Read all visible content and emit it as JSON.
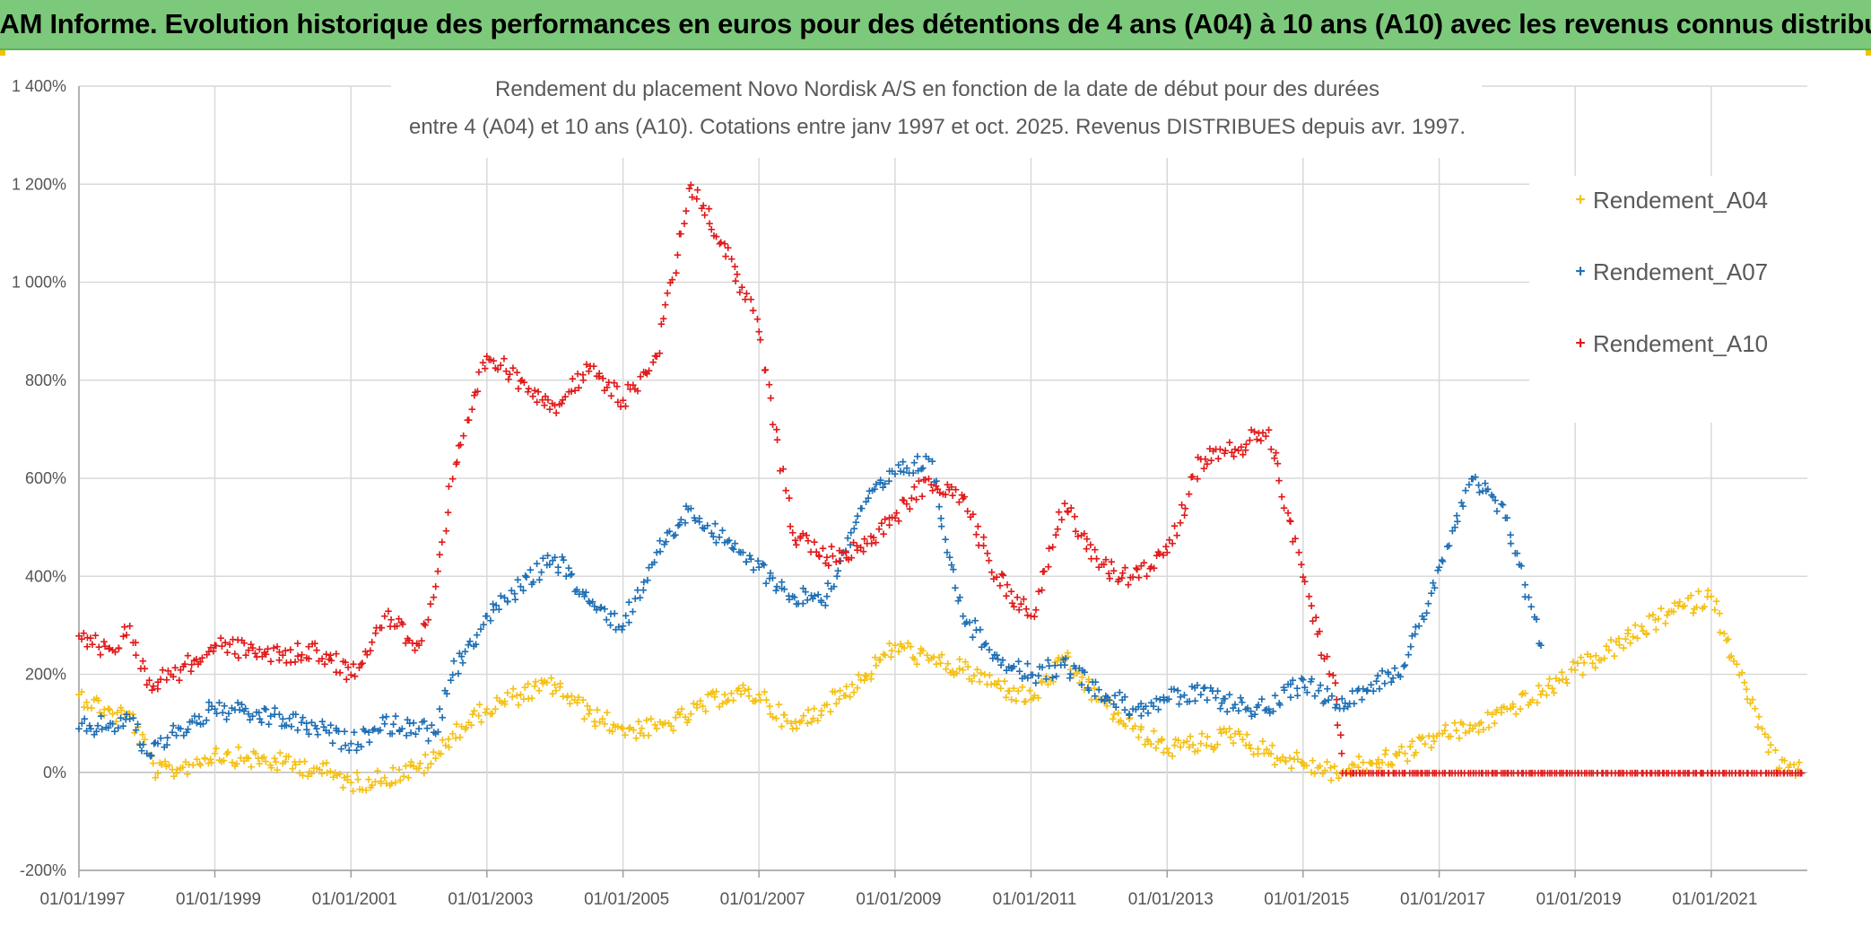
{
  "banner": {
    "text": "ADAM Informe. Evolution historique des performances en euros pour des détentions de 4 ans (A04) à 10 ans (A10) avec les revenus connus distribués"
  },
  "chart_data": {
    "type": "scatter",
    "title": "Rendement du placement Novo Nordisk A/S en fonction de la date de début pour des durées",
    "subtitle": "entre 4 (A04) et 10 ans (A10). Cotations entre janv 1997 et oct. 2025. Revenus DISTRIBUES depuis avr. 1997.",
    "xlabel": "",
    "ylabel": "",
    "xlim": [
      "1997-01-01",
      "2022-06-01"
    ],
    "ylim": [
      -200,
      1400
    ],
    "x_ticks": [
      "01/01/1997",
      "01/01/1999",
      "01/01/2001",
      "01/01/2003",
      "01/01/2005",
      "01/01/2007",
      "01/01/2009",
      "01/01/2011",
      "01/01/2013",
      "01/01/2015",
      "01/01/2017",
      "01/01/2019",
      "01/01/2021"
    ],
    "y_ticks": [
      {
        "value": -200,
        "label": "-200%"
      },
      {
        "value": 0,
        "label": "0%"
      },
      {
        "value": 200,
        "label": "200%"
      },
      {
        "value": 400,
        "label": "400%"
      },
      {
        "value": 600,
        "label": "600%"
      },
      {
        "value": 800,
        "label": "800%"
      },
      {
        "value": 1000,
        "label": "1 000%"
      },
      {
        "value": 1200,
        "label": "1 200%"
      },
      {
        "value": 1400,
        "label": "1 400%"
      }
    ],
    "grid": true,
    "legend_position": "top-right",
    "marker": "+",
    "series": [
      {
        "name": "Rendement_A04",
        "color": "#f5c116",
        "x": [
          "1997-01-01",
          "1997-07-01",
          "1997-10-01",
          "1998-01-01",
          "1998-03-01",
          "1998-07-01",
          "1999-01-01",
          "1999-07-01",
          "2000-01-01",
          "2000-07-01",
          "2001-01-01",
          "2001-07-01",
          "2002-01-01",
          "2002-04-01",
          "2002-07-01",
          "2003-01-01",
          "2003-07-01",
          "2004-01-01",
          "2004-07-01",
          "2005-01-01",
          "2005-07-01",
          "2006-01-01",
          "2006-07-01",
          "2007-01-01",
          "2007-07-01",
          "2008-01-01",
          "2008-07-01",
          "2009-01-01",
          "2009-07-01",
          "2010-01-01",
          "2010-07-01",
          "2011-01-01",
          "2011-07-01",
          "2012-01-01",
          "2012-07-01",
          "2013-01-01",
          "2013-07-01",
          "2014-01-01",
          "2014-07-01",
          "2015-01-01",
          "2015-07-01",
          "2016-01-01",
          "2016-07-01",
          "2017-01-01",
          "2017-07-01",
          "2018-01-01",
          "2018-07-01",
          "2019-01-01",
          "2019-07-01",
          "2020-01-01",
          "2020-06-01",
          "2021-01-01",
          "2021-06-01",
          "2021-10-01",
          "2022-01-01",
          "2022-05-01"
        ],
        "y": [
          160,
          120,
          120,
          40,
          0,
          10,
          40,
          30,
          20,
          10,
          -20,
          -10,
          10,
          30,
          80,
          130,
          160,
          180,
          120,
          90,
          90,
          120,
          160,
          160,
          90,
          140,
          190,
          260,
          230,
          210,
          180,
          150,
          230,
          150,
          90,
          50,
          60,
          80,
          40,
          20,
          0,
          20,
          40,
          80,
          90,
          130,
          160,
          210,
          250,
          290,
          330,
          360,
          200,
          90,
          10,
          0
        ]
      },
      {
        "name": "Rendement_A07",
        "color": "#1f6fb4",
        "x": [
          "1997-01-01",
          "1997-07-01",
          "1997-10-01",
          "1998-01-01",
          "1998-07-01",
          "1999-01-01",
          "1999-07-01",
          "2000-01-01",
          "2000-07-01",
          "2001-01-01",
          "2001-07-01",
          "2002-01-01",
          "2002-04-01",
          "2002-07-01",
          "2003-01-01",
          "2003-07-01",
          "2004-01-01",
          "2004-07-01",
          "2005-01-01",
          "2005-07-01",
          "2006-01-01",
          "2006-07-01",
          "2007-01-01",
          "2007-07-01",
          "2008-01-01",
          "2008-07-01",
          "2009-01-01",
          "2009-07-01",
          "2010-01-01",
          "2010-07-01",
          "2011-01-01",
          "2011-07-01",
          "2012-01-01",
          "2012-07-01",
          "2013-01-01",
          "2013-07-01",
          "2014-01-01",
          "2014-07-01",
          "2015-01-01",
          "2015-07-01",
          "2016-01-01",
          "2016-07-01",
          "2017-01-01",
          "2017-07-01",
          "2018-01-01",
          "2018-07-01"
        ],
        "y": [
          90,
          100,
          110,
          40,
          90,
          130,
          120,
          110,
          90,
          60,
          100,
          90,
          80,
          200,
          320,
          380,
          440,
          350,
          300,
          450,
          540,
          470,
          420,
          360,
          360,
          540,
          610,
          640,
          320,
          240,
          200,
          220,
          170,
          130,
          150,
          160,
          140,
          130,
          190,
          140,
          180,
          220,
          420,
          600,
          520,
          260
        ]
      },
      {
        "name": "Rendement_A10",
        "color": "#e11a1a",
        "x": [
          "1997-01-01",
          "1997-07-01",
          "1997-10-01",
          "1998-01-01",
          "1998-07-01",
          "1999-01-01",
          "1999-07-01",
          "2000-01-01",
          "2000-07-01",
          "2001-01-01",
          "2001-07-01",
          "2002-01-01",
          "2002-04-01",
          "2002-07-01",
          "2003-01-01",
          "2003-07-01",
          "2004-01-01",
          "2004-07-01",
          "2005-01-01",
          "2005-07-01",
          "2006-01-01",
          "2006-07-01",
          "2007-01-01",
          "2007-07-01",
          "2008-01-01",
          "2008-07-01",
          "2009-01-01",
          "2009-07-01",
          "2010-01-01",
          "2010-07-01",
          "2011-01-01",
          "2011-07-01",
          "2012-01-01",
          "2012-07-01",
          "2013-01-01",
          "2013-07-01",
          "2014-01-01",
          "2014-07-01",
          "2015-01-01",
          "2015-07-01",
          "2015-08-01",
          "2016-01-01",
          "2017-01-01",
          "2018-01-01",
          "2019-01-01",
          "2020-01-01",
          "2021-01-01",
          "2022-05-01"
        ],
        "y": [
          280,
          250,
          300,
          180,
          210,
          260,
          250,
          240,
          250,
          200,
          320,
          260,
          380,
          600,
          850,
          800,
          750,
          820,
          760,
          850,
          1200,
          1080,
          900,
          490,
          440,
          460,
          520,
          600,
          560,
          400,
          320,
          550,
          420,
          400,
          450,
          640,
          660,
          700,
          400,
          150,
          0,
          0,
          0,
          0,
          0,
          0,
          0,
          0
        ]
      }
    ]
  }
}
